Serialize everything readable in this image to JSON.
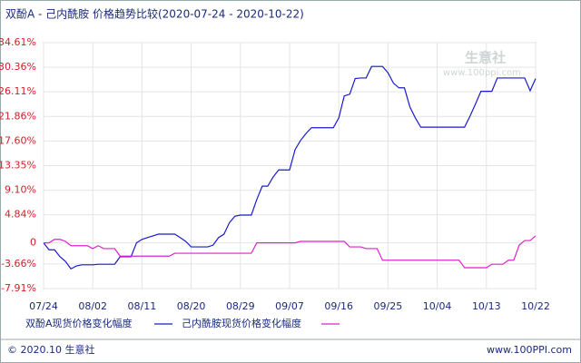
{
  "chart_data": {
    "type": "line",
    "title": "双酚A - 己内酰胺 价格趋势比较(2020-07-24 - 2020-10-22)",
    "watermark": "生意社",
    "watermark_url": "www.100ppi.com",
    "footer_left": "© 2020.10 生意社",
    "footer_right": "www.100PPI.com",
    "categories": [
      "07/24",
      null,
      null,
      null,
      null,
      null,
      null,
      null,
      null,
      "08/02",
      null,
      null,
      null,
      null,
      null,
      null,
      null,
      null,
      "08/11",
      null,
      null,
      null,
      null,
      null,
      null,
      null,
      null,
      "08/20",
      null,
      null,
      null,
      null,
      null,
      null,
      null,
      null,
      "08/29",
      null,
      null,
      null,
      null,
      null,
      null,
      null,
      null,
      "09/07",
      null,
      null,
      null,
      null,
      null,
      null,
      null,
      null,
      "09/16",
      null,
      null,
      null,
      null,
      null,
      null,
      null,
      null,
      "09/25",
      null,
      null,
      null,
      null,
      null,
      null,
      null,
      null,
      "10/04",
      null,
      null,
      null,
      null,
      null,
      null,
      null,
      null,
      "10/13",
      null,
      null,
      null,
      null,
      null,
      null,
      null,
      null,
      "10/22"
    ],
    "series": [
      {
        "name": "双酚A现货价格变化幅度",
        "color": "#1a1acc",
        "values": [
          0,
          -1.2,
          -1.2,
          -2.4,
          -3.2,
          -4.5,
          -4,
          -3.8,
          -3.8,
          -3.8,
          -3.7,
          -3.7,
          -3.7,
          -3.7,
          -2.4,
          -2.4,
          -2.4,
          0,
          0.6,
          0.9,
          1.2,
          1.5,
          1.5,
          1.5,
          1.5,
          0.9,
          0.25,
          -0.7,
          -0.7,
          -0.7,
          -0.7,
          -0.4,
          0.9,
          1.5,
          3.5,
          4.6,
          4.8,
          4.8,
          4.8,
          7.5,
          9.8,
          9.8,
          11.4,
          12.6,
          12.6,
          12.6,
          16.1,
          17.7,
          18.9,
          19.9,
          19.9,
          19.9,
          19.9,
          19.9,
          21.6,
          25.4,
          25.7,
          28.4,
          28.5,
          28.5,
          30.5,
          30.5,
          30.5,
          29.4,
          27.6,
          26.8,
          26.8,
          23.5,
          21.6,
          20,
          20,
          20,
          20,
          20,
          20,
          20,
          20,
          20,
          21.9,
          24,
          26.2,
          26.2,
          26.2,
          28.5,
          28.5,
          28.5,
          28.5,
          28.5,
          28.5,
          26.3,
          28.4
        ]
      },
      {
        "name": "己内酰胺现货价格变化幅度",
        "color": "#dd22cc",
        "values": [
          0,
          0,
          0.6,
          0.6,
          0.25,
          -0.5,
          -0.5,
          -0.5,
          -0.5,
          -1,
          -0.5,
          -1,
          -1,
          -1,
          -2.3,
          -2.3,
          -2.3,
          -2.3,
          -2.3,
          -2.3,
          -2.3,
          -2.3,
          -2.3,
          -2.3,
          -1.8,
          -1.8,
          -1.8,
          -1.8,
          -1.8,
          -1.8,
          -1.8,
          -1.8,
          -1.8,
          -1.8,
          -1.8,
          -1.8,
          -1.8,
          -1.8,
          -1.8,
          0,
          0,
          0,
          0,
          0,
          0,
          0,
          0,
          0.25,
          0.25,
          0.25,
          0.25,
          0.25,
          0.25,
          0.25,
          0.25,
          0.25,
          -0.7,
          -0.7,
          -0.7,
          -1,
          -1,
          -1,
          -3,
          -3,
          -3,
          -3,
          -3,
          -3,
          -3,
          -3,
          -3,
          -3,
          -3,
          -3,
          -3,
          -3,
          -3,
          -4.3,
          -4.3,
          -4.3,
          -4.3,
          -4.3,
          -3.7,
          -3.7,
          -3.7,
          -3,
          -3,
          -0.4,
          0.4,
          0.4,
          1.2
        ]
      }
    ],
    "ylim": [
      -7.91,
      34.61
    ],
    "yticks": [
      {
        "value": 34.61,
        "label": "34.61%"
      },
      {
        "value": 30.36,
        "label": "30.36%"
      },
      {
        "value": 26.11,
        "label": "26.11%"
      },
      {
        "value": 21.86,
        "label": "21.86%"
      },
      {
        "value": 17.6,
        "label": "17.60%"
      },
      {
        "value": 13.35,
        "label": "13.35%"
      },
      {
        "value": 9.1,
        "label": "9.10%"
      },
      {
        "value": 4.84,
        "label": "4.84%"
      },
      0,
      {
        "value": -3.66,
        "label": "-3.66%"
      },
      {
        "value": -7.91,
        "label": "-7.91%"
      }
    ],
    "grid": true
  }
}
